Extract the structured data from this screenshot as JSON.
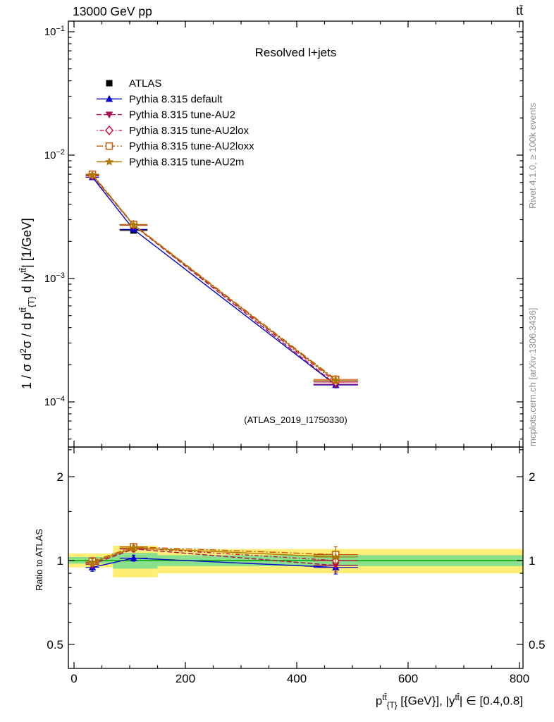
{
  "header": {
    "energy_process": "13000 GeV pp",
    "channel": "tt̄"
  },
  "right_margin": {
    "generator_info": "Rivet 4.1.0, ≥ 100k events",
    "source": "mcplots.cern.ch [arXiv:1306.3436]"
  },
  "labels": {
    "ratio_label": "Ratio to ATLAS",
    "ylabel_parts": [
      {
        "t": "1 / σ d",
        "s": "n"
      },
      {
        "t": "2",
        "s": "sup"
      },
      {
        "t": "σ / d p",
        "s": "n"
      },
      {
        "t": "tt̄",
        "s": "sup"
      },
      {
        "t": "{T}",
        "s": "sub"
      },
      {
        "t": " d |y",
        "s": "n"
      },
      {
        "t": "tt̄",
        "s": "sup"
      },
      {
        "t": "| [1/GeV]",
        "s": "n"
      }
    ],
    "xlabel_parts": [
      {
        "t": "p",
        "s": "n"
      },
      {
        "t": "tt̄",
        "s": "sup"
      },
      {
        "t": "{T}",
        "s": "sub"
      },
      {
        "t": " [{GeV}], |y",
        "s": "n"
      },
      {
        "t": "tt̄",
        "s": "sup"
      },
      {
        "t": "| ∈ [0.4,0.8]",
        "s": "n"
      }
    ]
  },
  "chart_data": {
    "type": "line",
    "title": "Resolved l+jets",
    "watermark": "(ATLAS_2019_I1750330)",
    "xlabel": "p_{T}^{tt̄} [{GeV}], |y^{tt̄}| ∈ [0.4,0.8]",
    "ylabel": "1 / σ d²σ / d p_{T}^{tt̄} d |y^{tt̄}| [1/GeV]",
    "ratio_label": "Ratio to ATLAS",
    "x_axis": {
      "min": 0,
      "max": 806,
      "major_ticks": [
        0,
        200,
        400,
        600,
        800
      ],
      "minor_step": 50
    },
    "y_axis": {
      "scale": "log",
      "min": 4.5e-05,
      "max": 0.12,
      "decades": [
        -1,
        -2,
        -3,
        -4
      ]
    },
    "ratio_axis": {
      "scale": "log",
      "min": 0.41,
      "max": 2.55,
      "major_ticks": [
        0.5,
        1,
        2
      ],
      "minor_ticks": [
        0.6,
        0.7,
        0.8,
        0.9,
        1.5,
        2.5
      ]
    },
    "x": [
      33,
      107,
      470
    ],
    "xerr": [
      12,
      25,
      40
    ],
    "series": [
      {
        "name": "ATLAS",
        "color": "#000000",
        "marker": "square-filled",
        "line": "none",
        "values": [
          0.007,
          0.00245,
          0.000145
        ],
        "yerr_frac": [
          0.04,
          0.04,
          0.05
        ]
      },
      {
        "name": "Pythia 8.315 default",
        "color": "#0000cd",
        "marker": "triangle-up-filled",
        "line": "solid",
        "values": [
          0.00662,
          0.0025,
          0.000137
        ],
        "ratio": [
          0.945,
          1.02,
          0.945
        ],
        "ratio_err": [
          0.03,
          0.025,
          0.05
        ]
      },
      {
        "name": "Pythia 8.315 tune-AU2",
        "color": "#aa1155",
        "marker": "triangle-down-filled",
        "line": "dashed",
        "values": [
          0.00679,
          0.0027,
          0.000139
        ],
        "ratio": [
          0.97,
          1.1,
          0.96
        ],
        "ratio_err": [
          0.03,
          0.025,
          0.05
        ]
      },
      {
        "name": "Pythia 8.315 tune-AU2lox",
        "color": "#cc1144",
        "marker": "diamond-open",
        "line": "dashdot",
        "values": [
          0.00686,
          0.00272,
          0.000145
        ],
        "ratio": [
          0.98,
          1.11,
          1.0
        ],
        "ratio_err": [
          0.03,
          0.025,
          0.05
        ]
      },
      {
        "name": "Pythia 8.315 tune-AU2loxx",
        "color": "#cc5500",
        "marker": "square-open",
        "line": "longdashdot",
        "values": [
          0.007,
          0.00274,
          0.000152
        ],
        "ratio": [
          0.995,
          1.12,
          1.05
        ],
        "ratio_err": [
          0.03,
          0.025,
          0.07
        ]
      },
      {
        "name": "Pythia 8.315 tune-AU2m",
        "color": "#aa7700",
        "marker": "star-filled",
        "line": "solid",
        "values": [
          0.0069,
          0.00272,
          0.000149
        ],
        "ratio": [
          0.985,
          1.11,
          1.03
        ],
        "ratio_err": [
          0.03,
          0.025,
          0.05
        ]
      }
    ],
    "bands": {
      "yellow_color": "#ffee75",
      "green_color": "#8ae08a",
      "reference_line_color": "#00a500",
      "yellow": [
        [
          0,
          70,
          0.945,
          1.06
        ],
        [
          70,
          150,
          0.87,
          1.13
        ],
        [
          150,
          806,
          0.9,
          1.1
        ]
      ],
      "green": [
        [
          0,
          70,
          0.975,
          1.03
        ],
        [
          70,
          150,
          0.935,
          1.065
        ],
        [
          150,
          806,
          0.955,
          1.045
        ]
      ]
    }
  }
}
